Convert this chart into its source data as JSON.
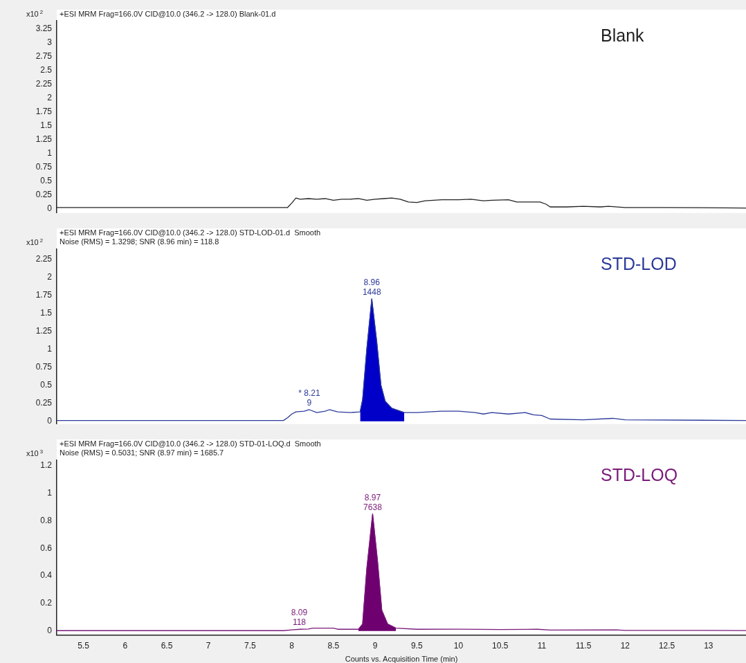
{
  "chart_data": [
    {
      "type": "line",
      "title": "+ESI MRM Frag=166.0V CID@10.0 (346.2 -> 128.0) Blank-01.d",
      "ylabel": "x10$^{2}$",
      "xlim": [
        5.18,
        13.45
      ],
      "ylim": [
        -0.08,
        3.39
      ],
      "yticks": [
        0,
        0.25,
        0.5,
        0.75,
        1,
        1.25,
        1.5,
        1.75,
        2,
        2.25,
        2.5,
        2.75,
        3,
        3.25
      ],
      "tick_labels": "y",
      "grid": false,
      "legend": false,
      "series": [
        {
          "name": "Blank",
          "color": "#222222",
          "x": [
            5.18,
            6.0,
            7.0,
            7.95,
            8.0,
            8.05,
            8.1,
            8.2,
            8.3,
            8.4,
            8.5,
            8.6,
            8.7,
            8.8,
            8.9,
            9.0,
            9.1,
            9.2,
            9.3,
            9.4,
            9.5,
            9.6,
            9.8,
            10.0,
            10.15,
            10.3,
            10.4,
            10.6,
            10.7,
            10.9,
            10.98,
            11.05,
            11.1,
            11.3,
            11.5,
            11.7,
            11.8,
            12.0,
            12.5,
            13.45
          ],
          "values": [
            0.02,
            0.02,
            0.02,
            0.02,
            0.1,
            0.19,
            0.17,
            0.18,
            0.17,
            0.18,
            0.15,
            0.17,
            0.17,
            0.18,
            0.15,
            0.17,
            0.18,
            0.19,
            0.17,
            0.12,
            0.11,
            0.14,
            0.16,
            0.16,
            0.17,
            0.14,
            0.15,
            0.16,
            0.12,
            0.12,
            0.12,
            0.08,
            0.03,
            0.03,
            0.04,
            0.03,
            0.04,
            0.02,
            0.02,
            0.01
          ]
        }
      ]
    },
    {
      "type": "line",
      "title": "+ESI MRM Frag=166.0V CID@10.0 (346.2 -> 128.0) STD-LOD-01.d  Smooth",
      "subtitle": "Noise (RMS) = 1.3298; SNR (8.96 min) = 118.8",
      "ylabel": "x10$^{2}$",
      "xlim": [
        5.18,
        13.45
      ],
      "ylim": [
        -0.04,
        2.39
      ],
      "yticks": [
        0,
        0.25,
        0.5,
        0.75,
        1,
        1.25,
        1.5,
        1.75,
        2,
        2.25
      ],
      "tick_labels": "y",
      "grid": false,
      "legend": false,
      "annotations": [
        {
          "text": "* 8.21\n9",
          "x": 8.21,
          "y": 0.16
        },
        {
          "text": "8.96\n1448",
          "x": 8.96,
          "y": 1.7
        }
      ],
      "series": [
        {
          "name": "STD-LOD",
          "color": "#2b3a9a",
          "x": [
            5.18,
            6.5,
            7.0,
            7.9,
            7.95,
            8.0,
            8.05,
            8.15,
            8.21,
            8.3,
            8.4,
            8.45,
            8.55,
            8.7,
            8.82,
            8.85,
            8.9,
            8.96,
            9.02,
            9.07,
            9.12,
            9.2,
            9.35,
            9.5,
            9.8,
            10.0,
            10.2,
            10.3,
            10.4,
            10.6,
            10.8,
            10.9,
            11.0,
            11.1,
            11.5,
            11.85,
            12.0,
            13.45
          ],
          "values": [
            0.01,
            0.01,
            0.01,
            0.01,
            0.05,
            0.1,
            0.13,
            0.14,
            0.16,
            0.12,
            0.14,
            0.16,
            0.13,
            0.12,
            0.13,
            0.3,
            1.0,
            1.7,
            1.1,
            0.5,
            0.28,
            0.18,
            0.12,
            0.12,
            0.14,
            0.14,
            0.12,
            0.1,
            0.12,
            0.1,
            0.12,
            0.09,
            0.08,
            0.03,
            0.02,
            0.04,
            0.02,
            0.01
          ]
        },
        {
          "type": "area",
          "color": "#0000c8",
          "x": [
            8.82,
            8.85,
            8.9,
            8.96,
            9.02,
            9.07,
            9.12,
            9.2,
            9.35
          ],
          "values": [
            0.13,
            0.3,
            1.0,
            1.7,
            1.1,
            0.5,
            0.28,
            0.18,
            0.12
          ]
        }
      ]
    },
    {
      "type": "line",
      "title": "+ESI MRM Frag=166.0V CID@10.0 (346.2 -> 128.0) STD-01-LOQ.d  Smooth",
      "subtitle": "Noise (RMS) = 0.5031; SNR (8.97 min) = 1685.7",
      "ylabel": "x10$^{3}$",
      "xlabel": "Counts vs. Acquisition Time (min)",
      "xlim": [
        5.18,
        13.45
      ],
      "ylim": [
        -0.03,
        1.24
      ],
      "xticks": [
        5.5,
        6,
        6.5,
        7,
        7.5,
        8,
        8.5,
        9,
        9.5,
        10,
        10.5,
        11,
        11.5,
        12,
        12.5,
        13
      ],
      "yticks": [
        0,
        0.2,
        0.4,
        0.6,
        0.8,
        1,
        1.2
      ],
      "grid": false,
      "legend": false,
      "annotations": [
        {
          "text": "8.09\n118",
          "x": 8.09,
          "y": 0.012
        },
        {
          "text": "8.97\n7638",
          "x": 8.97,
          "y": 0.85
        }
      ],
      "series": [
        {
          "name": "STD-LOQ",
          "color": "#7a1a7a",
          "x": [
            5.18,
            7.9,
            8.0,
            8.1,
            8.2,
            8.25,
            8.5,
            8.55,
            8.8,
            8.85,
            8.9,
            8.97,
            9.03,
            9.08,
            9.15,
            9.25,
            9.5,
            10.0,
            10.5,
            10.95,
            11.1,
            11.9,
            12.0,
            13.45
          ],
          "values": [
            0.002,
            0.002,
            0.008,
            0.012,
            0.014,
            0.02,
            0.02,
            0.012,
            0.012,
            0.05,
            0.45,
            0.85,
            0.5,
            0.15,
            0.05,
            0.02,
            0.012,
            0.013,
            0.01,
            0.012,
            0.006,
            0.008,
            0.004,
            0.003
          ]
        },
        {
          "type": "area",
          "color": "#6e0070",
          "x": [
            8.8,
            8.85,
            8.9,
            8.97,
            9.03,
            9.08,
            9.15,
            9.25
          ],
          "values": [
            0.012,
            0.05,
            0.45,
            0.85,
            0.5,
            0.15,
            0.05,
            0.02
          ]
        }
      ]
    }
  ]
}
